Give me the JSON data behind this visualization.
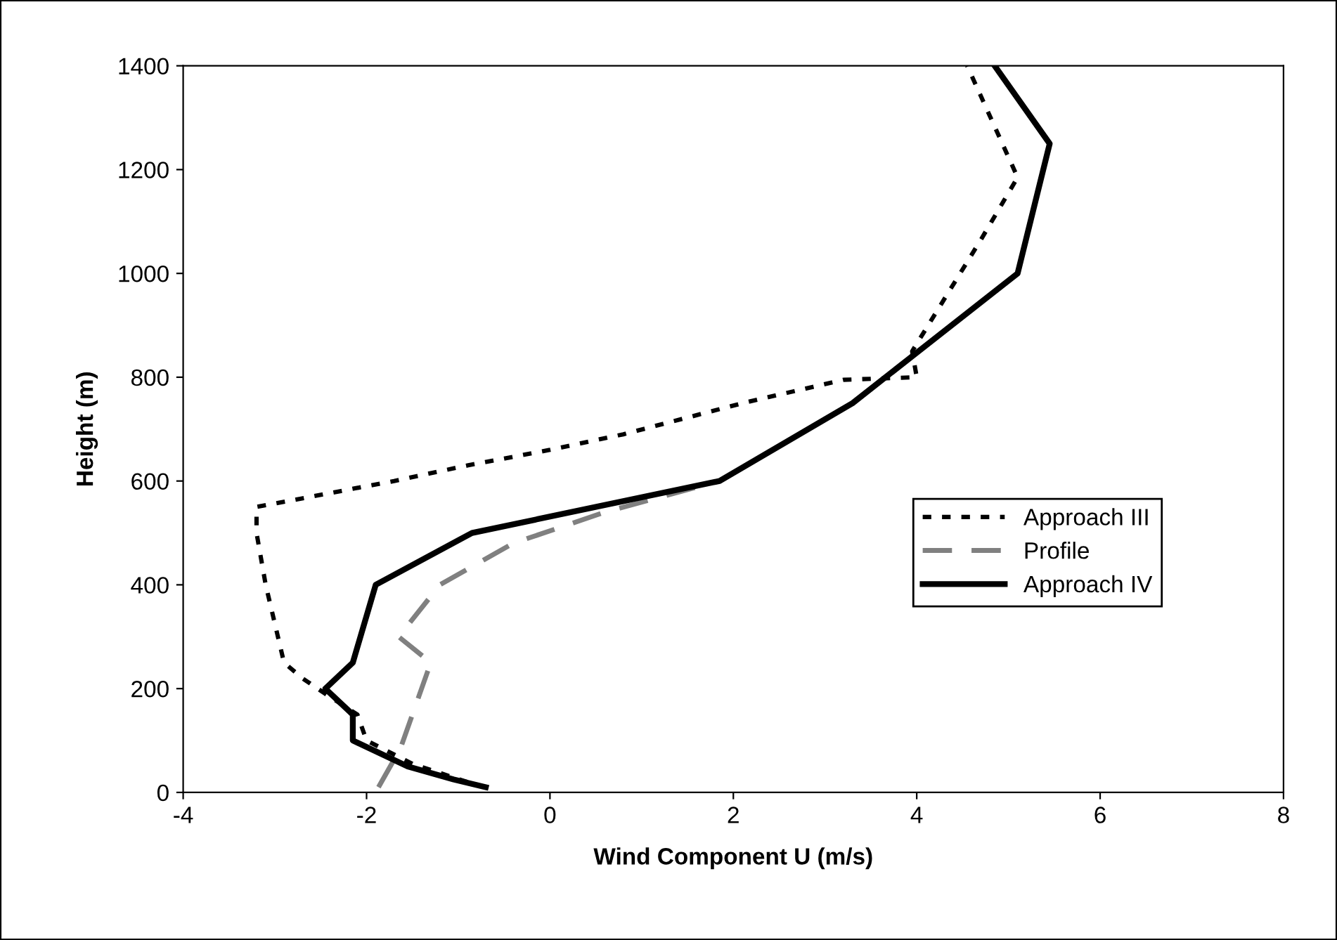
{
  "chart_data": {
    "type": "line",
    "xlabel": "Wind Component U (m/s)",
    "ylabel": "Height (m)",
    "xlim": [
      -4,
      8
    ],
    "xticks": [
      -4,
      -2,
      0,
      2,
      4,
      6,
      8
    ],
    "ylim": [
      0,
      1400
    ],
    "yticks": [
      0,
      200,
      400,
      600,
      800,
      1000,
      1200,
      1400
    ],
    "grid": false,
    "legend": "right",
    "marker": "none",
    "series": [
      {
        "name": "Approach III",
        "color": "#000000",
        "line_style": "dotted",
        "x": [
          -0.9,
          -1.5,
          -2.0,
          -2.1,
          -2.45,
          -2.7,
          -2.9,
          -3.1,
          -3.2,
          -3.2,
          -2.6,
          -1.7,
          -0.9,
          0.0,
          0.8,
          2.1,
          3.2,
          4.0,
          3.95,
          4.7,
          5.1,
          4.55
        ],
        "values": [
          20,
          55,
          100,
          150,
          190,
          220,
          250,
          400,
          500,
          550,
          570,
          600,
          630,
          660,
          690,
          750,
          795,
          800,
          850,
          1065,
          1185,
          1400
        ]
      },
      {
        "name": "Profile",
        "color": "#808080",
        "line_style": "dashed",
        "x": [
          -1.87,
          -1.63,
          -1.3,
          -1.65,
          -1.2,
          -0.4,
          0.6,
          1.85
        ],
        "values": [
          10,
          85,
          250,
          300,
          400,
          480,
          540,
          600
        ]
      },
      {
        "name": "Approach IV",
        "color": "#000000",
        "line_style": "solid",
        "x": [
          -0.7,
          -1.05,
          -1.55,
          -2.15,
          -2.15,
          -2.45,
          -2.15,
          -1.9,
          -0.85,
          1.85,
          3.3,
          5.1,
          5.45,
          4.85
        ],
        "values": [
          10,
          25,
          50,
          100,
          150,
          200,
          250,
          400,
          500,
          600,
          750,
          1000,
          1250,
          1400
        ]
      }
    ]
  }
}
